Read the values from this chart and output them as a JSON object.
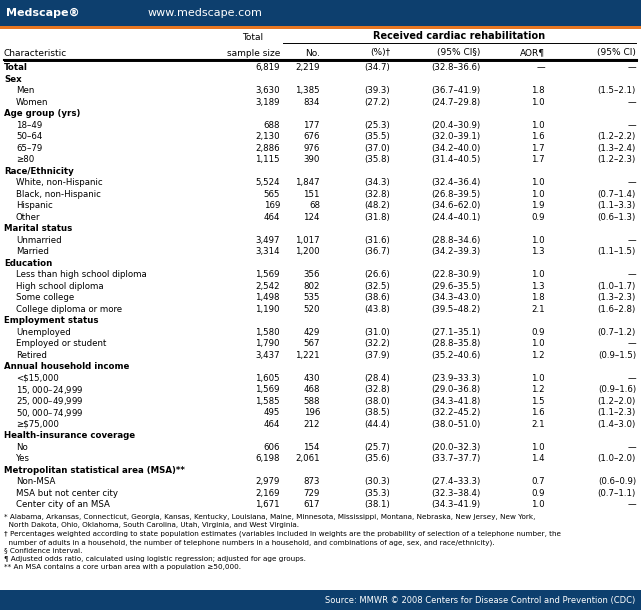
{
  "title_header": "Received cardiac rehabilitation",
  "header_bg": "#0d3f6e",
  "orange_line": "#e87722",
  "source_bg": "#0d3f6e",
  "medscape_text": "Medscape®",
  "website_text": "www.medscape.com",
  "source_line": "Source: MMWR © 2008 Centers for Disease Control and Prevention (CDC)",
  "rows": [
    {
      "label": "Total",
      "indent": 0,
      "bold": true,
      "section": false,
      "total": "6,819",
      "no": "2,219",
      "pct": "(34.7)",
      "ci": "(32.8–36.6)",
      "aor": "—",
      "aor_ci": "—"
    },
    {
      "label": "Sex",
      "indent": 0,
      "bold": true,
      "section": true
    },
    {
      "label": "Men",
      "indent": 1,
      "bold": false,
      "section": false,
      "total": "3,630",
      "no": "1,385",
      "pct": "(39.3)",
      "ci": "(36.7–41.9)",
      "aor": "1.8",
      "aor_ci": "(1.5–2.1)"
    },
    {
      "label": "Women",
      "indent": 1,
      "bold": false,
      "section": false,
      "total": "3,189",
      "no": "834",
      "pct": "(27.2)",
      "ci": "(24.7–29.8)",
      "aor": "1.0",
      "aor_ci": "—"
    },
    {
      "label": "Age group (yrs)",
      "indent": 0,
      "bold": true,
      "section": true
    },
    {
      "label": "18–49",
      "indent": 1,
      "bold": false,
      "section": false,
      "total": "688",
      "no": "177",
      "pct": "(25.3)",
      "ci": "(20.4–30.9)",
      "aor": "1.0",
      "aor_ci": "—"
    },
    {
      "label": "50–64",
      "indent": 1,
      "bold": false,
      "section": false,
      "total": "2,130",
      "no": "676",
      "pct": "(35.5)",
      "ci": "(32.0–39.1)",
      "aor": "1.6",
      "aor_ci": "(1.2–2.2)"
    },
    {
      "label": "65–79",
      "indent": 1,
      "bold": false,
      "section": false,
      "total": "2,886",
      "no": "976",
      "pct": "(37.0)",
      "ci": "(34.2–40.0)",
      "aor": "1.7",
      "aor_ci": "(1.3–2.4)"
    },
    {
      "label": "≥80",
      "indent": 1,
      "bold": false,
      "section": false,
      "total": "1,115",
      "no": "390",
      "pct": "(35.8)",
      "ci": "(31.4–40.5)",
      "aor": "1.7",
      "aor_ci": "(1.2–2.3)"
    },
    {
      "label": "Race/Ethnicity",
      "indent": 0,
      "bold": true,
      "section": true
    },
    {
      "label": "White, non-Hispanic",
      "indent": 1,
      "bold": false,
      "section": false,
      "total": "5,524",
      "no": "1,847",
      "pct": "(34.3)",
      "ci": "(32.4–36.4)",
      "aor": "1.0",
      "aor_ci": "—"
    },
    {
      "label": "Black, non-Hispanic",
      "indent": 1,
      "bold": false,
      "section": false,
      "total": "565",
      "no": "151",
      "pct": "(32.8)",
      "ci": "(26.8–39.5)",
      "aor": "1.0",
      "aor_ci": "(0.7–1.4)"
    },
    {
      "label": "Hispanic",
      "indent": 1,
      "bold": false,
      "section": false,
      "total": "169",
      "no": "68",
      "pct": "(48.2)",
      "ci": "(34.6–62.0)",
      "aor": "1.9",
      "aor_ci": "(1.1–3.3)"
    },
    {
      "label": "Other",
      "indent": 1,
      "bold": false,
      "section": false,
      "total": "464",
      "no": "124",
      "pct": "(31.8)",
      "ci": "(24.4–40.1)",
      "aor": "0.9",
      "aor_ci": "(0.6–1.3)"
    },
    {
      "label": "Marital status",
      "indent": 0,
      "bold": true,
      "section": true
    },
    {
      "label": "Unmarried",
      "indent": 1,
      "bold": false,
      "section": false,
      "total": "3,497",
      "no": "1,017",
      "pct": "(31.6)",
      "ci": "(28.8–34.6)",
      "aor": "1.0",
      "aor_ci": "—"
    },
    {
      "label": "Married",
      "indent": 1,
      "bold": false,
      "section": false,
      "total": "3,314",
      "no": "1,200",
      "pct": "(36.7)",
      "ci": "(34.2–39.3)",
      "aor": "1.3",
      "aor_ci": "(1.1–1.5)"
    },
    {
      "label": "Education",
      "indent": 0,
      "bold": true,
      "section": true
    },
    {
      "label": "Less than high school diploma",
      "indent": 1,
      "bold": false,
      "section": false,
      "total": "1,569",
      "no": "356",
      "pct": "(26.6)",
      "ci": "(22.8–30.9)",
      "aor": "1.0",
      "aor_ci": "—"
    },
    {
      "label": "High school diploma",
      "indent": 1,
      "bold": false,
      "section": false,
      "total": "2,542",
      "no": "802",
      "pct": "(32.5)",
      "ci": "(29.6–35.5)",
      "aor": "1.3",
      "aor_ci": "(1.0–1.7)"
    },
    {
      "label": "Some college",
      "indent": 1,
      "bold": false,
      "section": false,
      "total": "1,498",
      "no": "535",
      "pct": "(38.6)",
      "ci": "(34.3–43.0)",
      "aor": "1.8",
      "aor_ci": "(1.3–2.3)"
    },
    {
      "label": "College diploma or more",
      "indent": 1,
      "bold": false,
      "section": false,
      "total": "1,190",
      "no": "520",
      "pct": "(43.8)",
      "ci": "(39.5–48.2)",
      "aor": "2.1",
      "aor_ci": "(1.6–2.8)"
    },
    {
      "label": "Employment status",
      "indent": 0,
      "bold": true,
      "section": true
    },
    {
      "label": "Unemployed",
      "indent": 1,
      "bold": false,
      "section": false,
      "total": "1,580",
      "no": "429",
      "pct": "(31.0)",
      "ci": "(27.1–35.1)",
      "aor": "0.9",
      "aor_ci": "(0.7–1.2)"
    },
    {
      "label": "Employed or student",
      "indent": 1,
      "bold": false,
      "section": false,
      "total": "1,790",
      "no": "567",
      "pct": "(32.2)",
      "ci": "(28.8–35.8)",
      "aor": "1.0",
      "aor_ci": "—"
    },
    {
      "label": "Retired",
      "indent": 1,
      "bold": false,
      "section": false,
      "total": "3,437",
      "no": "1,221",
      "pct": "(37.9)",
      "ci": "(35.2–40.6)",
      "aor": "1.2",
      "aor_ci": "(0.9–1.5)"
    },
    {
      "label": "Annual household income",
      "indent": 0,
      "bold": true,
      "section": true
    },
    {
      "label": "<$15,000",
      "indent": 1,
      "bold": false,
      "section": false,
      "total": "1,605",
      "no": "430",
      "pct": "(28.4)",
      "ci": "(23.9–33.3)",
      "aor": "1.0",
      "aor_ci": "—"
    },
    {
      "label": "$15,000–$24,999",
      "indent": 1,
      "bold": false,
      "section": false,
      "total": "1,569",
      "no": "468",
      "pct": "(32.8)",
      "ci": "(29.0–36.8)",
      "aor": "1.2",
      "aor_ci": "(0.9–1.6)"
    },
    {
      "label": "$25,000–$49,999",
      "indent": 1,
      "bold": false,
      "section": false,
      "total": "1,585",
      "no": "588",
      "pct": "(38.0)",
      "ci": "(34.3–41.8)",
      "aor": "1.5",
      "aor_ci": "(1.2–2.0)"
    },
    {
      "label": "$50,000–$74,999",
      "indent": 1,
      "bold": false,
      "section": false,
      "total": "495",
      "no": "196",
      "pct": "(38.5)",
      "ci": "(32.2–45.2)",
      "aor": "1.6",
      "aor_ci": "(1.1–2.3)"
    },
    {
      "label": "≥$75,000",
      "indent": 1,
      "bold": false,
      "section": false,
      "total": "464",
      "no": "212",
      "pct": "(44.4)",
      "ci": "(38.0–51.0)",
      "aor": "2.1",
      "aor_ci": "(1.4–3.0)"
    },
    {
      "label": "Health-insurance coverage",
      "indent": 0,
      "bold": true,
      "section": true
    },
    {
      "label": "No",
      "indent": 1,
      "bold": false,
      "section": false,
      "total": "606",
      "no": "154",
      "pct": "(25.7)",
      "ci": "(20.0–32.3)",
      "aor": "1.0",
      "aor_ci": "—"
    },
    {
      "label": "Yes",
      "indent": 1,
      "bold": false,
      "section": false,
      "total": "6,198",
      "no": "2,061",
      "pct": "(35.6)",
      "ci": "(33.7–37.7)",
      "aor": "1.4",
      "aor_ci": "(1.0–2.0)"
    },
    {
      "label": "Metropolitan statistical area (MSA)**",
      "indent": 0,
      "bold": true,
      "section": true
    },
    {
      "label": "Non-MSA",
      "indent": 1,
      "bold": false,
      "section": false,
      "total": "2,979",
      "no": "873",
      "pct": "(30.3)",
      "ci": "(27.4–33.3)",
      "aor": "0.7",
      "aor_ci": "(0.6–0.9)"
    },
    {
      "label": "MSA but not center city",
      "indent": 1,
      "bold": false,
      "section": false,
      "total": "2,169",
      "no": "729",
      "pct": "(35.3)",
      "ci": "(32.3–38.4)",
      "aor": "0.9",
      "aor_ci": "(0.7–1.1)"
    },
    {
      "label": "Center city of an MSA",
      "indent": 1,
      "bold": false,
      "section": false,
      "total": "1,671",
      "no": "617",
      "pct": "(38.1)",
      "ci": "(34.3–41.9)",
      "aor": "1.0",
      "aor_ci": "—"
    }
  ],
  "footnotes": [
    {
      "sym": "*",
      "text": "Alabama, Arkansas, Connecticut, Georgia, Kansas, Kentucky, Louisiana, Maine, Minnesota, Mississippi, Montana, Nebraska, New Jersey, New York,"
    },
    {
      "sym": "",
      "text": "North Dakota, Ohio, Oklahoma, South Carolina, Utah, Virginia, and West Virginia."
    },
    {
      "sym": "†",
      "text": "Percentages weighted according to state population estimates (variables included in weights are the probability of selection of a telephone number, the"
    },
    {
      "sym": "",
      "text": "number of adults in a household, the number of telephone numbers in a household, and combinations of age, sex, and race/ethnicity)."
    },
    {
      "sym": "§",
      "text": "Confidence interval."
    },
    {
      "sym": "¶",
      "text": "Adjusted odds ratio, calculated using logistic regression; adjusted for age groups."
    },
    {
      "sym": "**",
      "text": "An MSA contains a core urban area with a population ≥50,000."
    }
  ]
}
